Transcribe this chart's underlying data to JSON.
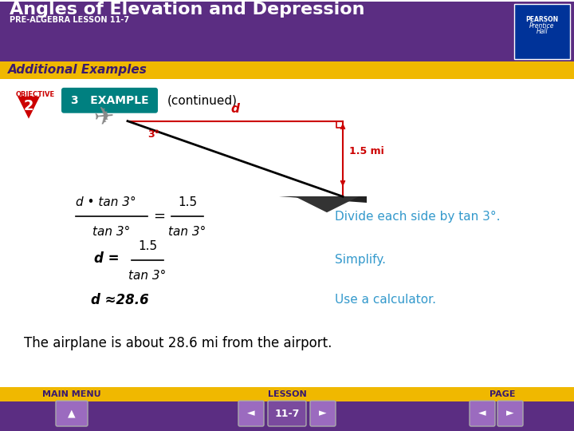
{
  "title": "Angles of Elevation and Depression",
  "subtitle": "PRE-ALGEBRA LESSON 11-7",
  "header_bg": "#5b2d82",
  "header_text_color": "#ffffff",
  "banner_text": "Additional Examples",
  "banner_bg": "#f0b800",
  "banner_text_color": "#3a1a6e",
  "body_bg": "#ffffff",
  "footer_bg": "#5b2d82",
  "footer_text_color": "#f0b800",
  "footer_labels": [
    "MAIN MENU",
    "LESSON",
    "PAGE"
  ],
  "lesson_number": "11-7",
  "example_label": "3   EXAMPLE",
  "example_bg": "#008080",
  "continued_text": "(continued)",
  "objective_num": "2",
  "obj_bg": "#cc0000",
  "conclusion": "The airplane is about 28.6 mi from the airport.",
  "note_color": "#3399cc",
  "eq_color": "#000000",
  "diagram_line_color": "#000000",
  "diagram_red": "#cc0000",
  "pearson_bg": "#003399"
}
